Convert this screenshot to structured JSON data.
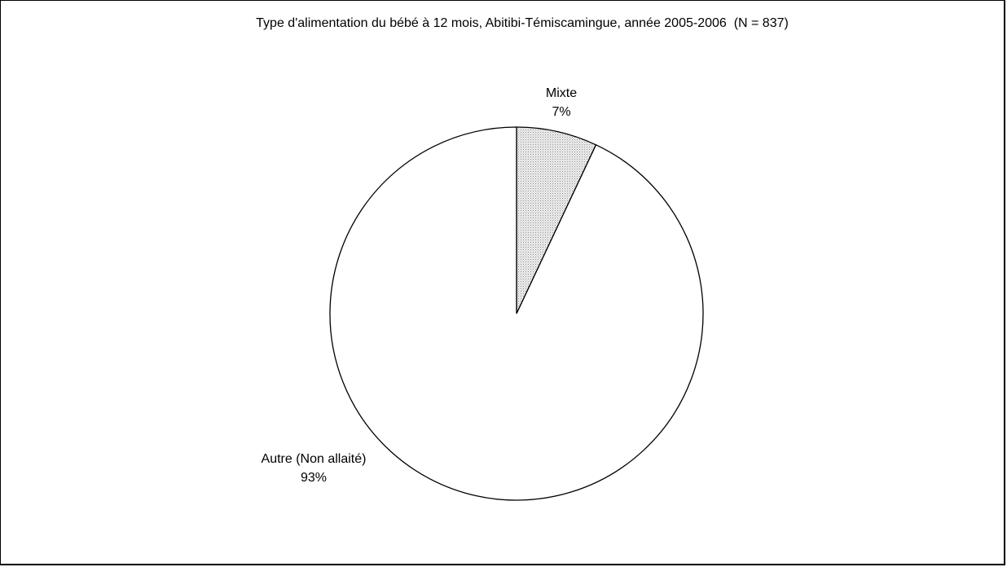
{
  "chart_data": {
    "type": "pie",
    "title": "Type d'alimentation du bébé à 12 mois, Abitibi-Témiscamingue, année 2005-2006  (N = 837)",
    "slices": [
      {
        "name": "Mixte",
        "value": 7,
        "label": "7%",
        "color": "#e6e6e6",
        "pattern": "dotted"
      },
      {
        "name": "Autre (Non allaité)",
        "value": 93,
        "label": "93%",
        "color": "#ffffff"
      }
    ],
    "start_angle_deg": 0,
    "direction": "clockwise"
  }
}
